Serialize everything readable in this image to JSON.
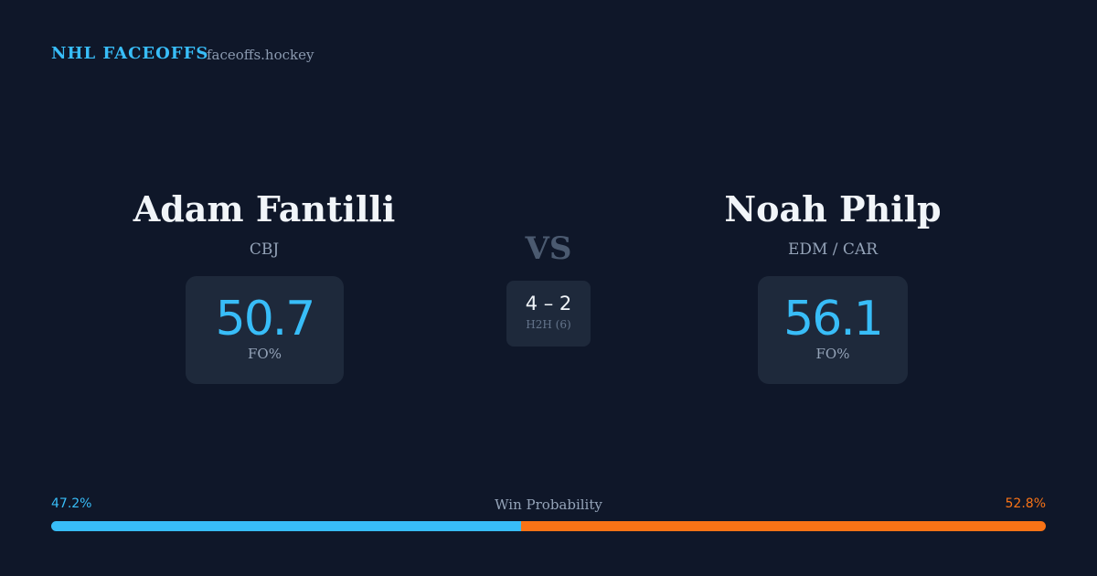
{
  "header": {
    "title": "NHL FACEOFFS",
    "site": "faceoffs.hockey"
  },
  "players": [
    {
      "name": "Adam Fantilli",
      "team": "CBJ",
      "fo_pct": 50.7,
      "fo_label": "FO%"
    },
    {
      "name": "Noah Philp",
      "team": "EDM / CAR",
      "fo_pct": 56.1,
      "fo_label": "FO%"
    }
  ],
  "versus": {
    "label": "VS",
    "score": "4 – 2",
    "h2h": "H2H (6)"
  },
  "win_probability": {
    "title": "Win Probability",
    "left": {
      "value": 47.2,
      "label": "47.2%",
      "color": "#38bdf8"
    },
    "right": {
      "value": 52.8,
      "label": "52.8%",
      "color": "#f97316"
    }
  }
}
